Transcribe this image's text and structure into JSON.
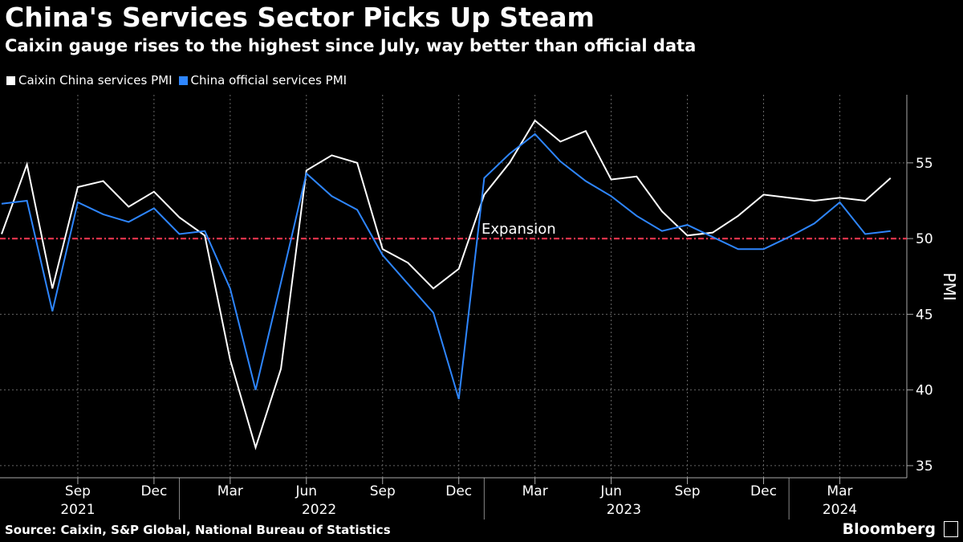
{
  "title": "China's Services Sector Picks Up Steam",
  "subtitle": "Caixin gauge rises to the highest since July, way better than official data",
  "legend": [
    {
      "label": "Caixin China services PMI",
      "color": "#ffffff"
    },
    {
      "label": "China official services PMI",
      "color": "#2e86ff"
    }
  ],
  "source": "Source: Caixin, S&P Global, National Bureau of Statistics",
  "brand": "Bloomberg",
  "chart_data": {
    "type": "line",
    "ylabel": "PMI",
    "ylim": [
      34.2,
      59.5
    ],
    "yticks": [
      35,
      40,
      45,
      50,
      55
    ],
    "grid": true,
    "reference_line": {
      "value": 50,
      "label": "Expansion",
      "color": "#e8334a",
      "style": "dash-dot"
    },
    "x_month_labels": [
      "Sep",
      "Dec",
      "Mar",
      "Jun",
      "Sep",
      "Dec",
      "Mar",
      "Jun",
      "Sep",
      "Dec",
      "Mar"
    ],
    "x_year_labels": [
      "2021",
      "2022",
      "2023",
      "2024"
    ],
    "x": [
      "2021-06",
      "2021-07",
      "2021-08",
      "2021-09",
      "2021-10",
      "2021-11",
      "2021-12",
      "2022-01",
      "2022-02",
      "2022-03",
      "2022-04",
      "2022-05",
      "2022-06",
      "2022-07",
      "2022-08",
      "2022-09",
      "2022-10",
      "2022-11",
      "2022-12",
      "2023-01",
      "2023-02",
      "2023-03",
      "2023-04",
      "2023-05",
      "2023-06",
      "2023-07",
      "2023-08",
      "2023-09",
      "2023-10",
      "2023-11",
      "2023-12",
      "2024-01",
      "2024-02",
      "2024-03",
      "2024-04",
      "2024-05"
    ],
    "series": [
      {
        "name": "Caixin China services PMI",
        "color": "#ffffff",
        "values": [
          50.3,
          54.9,
          46.7,
          53.4,
          53.8,
          52.1,
          53.1,
          51.4,
          50.2,
          42.0,
          36.2,
          41.4,
          54.5,
          55.5,
          55.0,
          49.3,
          48.4,
          46.7,
          48.0,
          52.9,
          55.0,
          57.8,
          56.4,
          57.1,
          53.9,
          54.1,
          51.8,
          50.2,
          50.4,
          51.5,
          52.9,
          52.7,
          52.5,
          52.7,
          52.5,
          54.0
        ]
      },
      {
        "name": "China official services PMI",
        "color": "#2e86ff",
        "values": [
          52.3,
          52.5,
          45.2,
          52.4,
          51.6,
          51.1,
          52.0,
          50.3,
          50.5,
          46.7,
          40.0,
          47.1,
          54.3,
          52.8,
          51.9,
          48.9,
          47.0,
          45.1,
          39.4,
          54.0,
          55.6,
          56.9,
          55.1,
          53.8,
          52.8,
          51.5,
          50.5,
          50.9,
          50.1,
          49.3,
          49.3,
          50.1,
          51.0,
          52.4,
          50.3,
          50.5
        ]
      }
    ]
  }
}
